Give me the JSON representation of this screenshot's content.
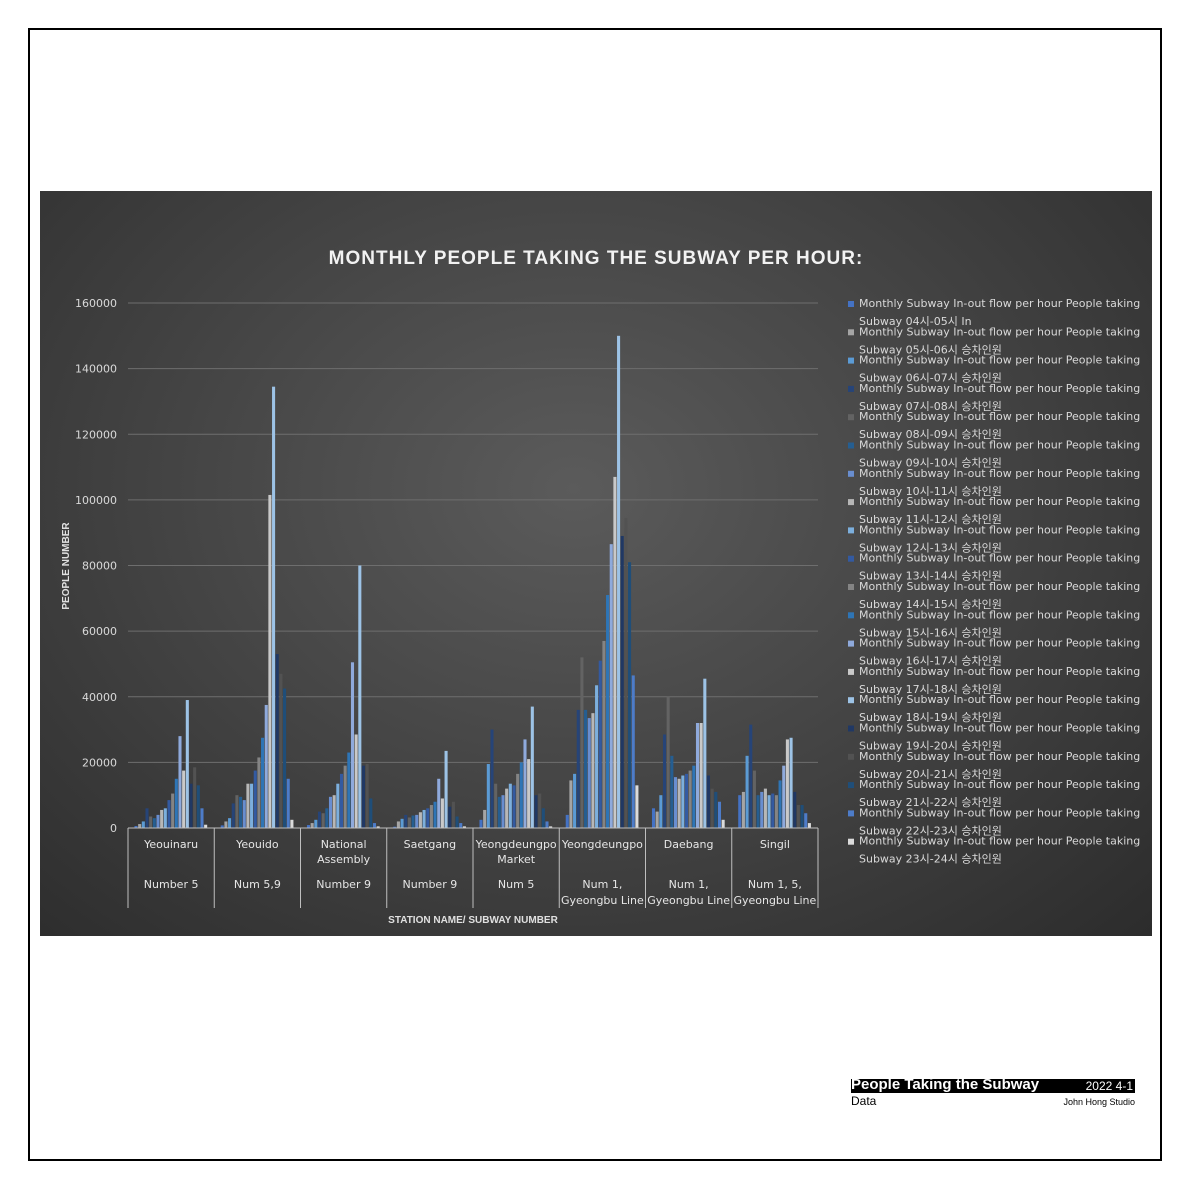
{
  "chart_data": {
    "type": "bar",
    "title": "MONTHLY PEOPLE TAKING THE SUBWAY PER HOUR:",
    "xlabel": "STATION NAME/ SUBWAY NUMBER",
    "ylabel": "PEOPLE NUMBER",
    "ylim": [
      0,
      160000
    ],
    "yticks": [
      "0",
      "20000",
      "40000",
      "60000",
      "80000",
      "100000",
      "120000",
      "140000",
      "160000"
    ],
    "grid": true,
    "legend_position": "right",
    "categories": [
      "Yeouinaru",
      "Yeouido",
      "National Assembly",
      "Saetgang",
      "Yeongdeungpo Market",
      "Yeongdeungpo",
      "Daebang",
      "Singil"
    ],
    "category_lines": {
      "names": [
        [
          "Yeouinaru"
        ],
        [
          "Yeouido"
        ],
        [
          "National",
          "Assembly"
        ],
        [
          "Saetgang"
        ],
        [
          "Yeongdeungpo",
          "Market"
        ],
        [
          "Yeongdeungpo"
        ],
        [
          "Daebang"
        ],
        [
          "Singil"
        ]
      ],
      "lines": [
        [
          "Number 5"
        ],
        [
          "Num 5,9"
        ],
        [
          "Number 9"
        ],
        [
          "Number 9"
        ],
        [
          "Num 5"
        ],
        [
          "Num 1,",
          "Gyeongbu Line"
        ],
        [
          "Num 1,",
          "Gyeongbu Line"
        ],
        [
          "Num 1, 5,",
          "Gyeongbu Line"
        ]
      ]
    },
    "subway_numbers": [
      "Number 5",
      "Num 5,9",
      "Number 9",
      "Number 9",
      "Num 5",
      "Num 1, Gyeongbu Line",
      "Num 1, Gyeongbu Line",
      "Num 1, 5, Gyeongbu Line"
    ],
    "series": [
      {
        "name": "Monthly Subway In-out flow per hour People taking Subway 04시-05시 In",
        "color": "#4472c4",
        "values": [
          600,
          800,
          900,
          400,
          2500,
          4000,
          6000,
          10000
        ]
      },
      {
        "name": "Monthly Subway In-out flow per hour People taking Subway 05시-06시 승차인원",
        "color": "#a5a5a5",
        "values": [
          1200,
          2000,
          1500,
          2000,
          5500,
          14500,
          5000,
          11000
        ]
      },
      {
        "name": "Monthly Subway In-out flow per hour People taking Subway 06시-07시 승차인원",
        "color": "#5b9bd5",
        "values": [
          2000,
          3000,
          2500,
          2800,
          19500,
          16500,
          10000,
          22000
        ]
      },
      {
        "name": "Monthly Subway In-out flow per hour People taking Subway 07시-08시 승차인원",
        "color": "#264478",
        "values": [
          6000,
          7500,
          5000,
          4000,
          30000,
          36000,
          28500,
          31500
        ]
      },
      {
        "name": "Monthly Subway In-out flow per hour People taking Subway 08시-09시 승차인원",
        "color": "#636363",
        "values": [
          3500,
          10000,
          4500,
          3200,
          13500,
          52000,
          40000,
          17500
        ]
      },
      {
        "name": "Monthly Subway In-out flow per hour People taking Subway 09시-10시 승차인원",
        "color": "#255e91",
        "values": [
          3000,
          9500,
          6000,
          3800,
          9500,
          36000,
          22000,
          10000
        ]
      },
      {
        "name": "Monthly Subway In-out flow per hour People taking Subway 10시-11시 승차인원",
        "color": "#698ed0",
        "values": [
          4000,
          8500,
          9500,
          4000,
          10000,
          33500,
          15500,
          11000
        ]
      },
      {
        "name": "Monthly Subway In-out flow per hour People taking Subway 11시-12시 승차인원",
        "color": "#b7b7b7",
        "values": [
          5500,
          13500,
          10000,
          4800,
          12000,
          35000,
          15000,
          12000
        ]
      },
      {
        "name": "Monthly Subway In-out flow per hour People taking Subway 12시-13시 승차인원",
        "color": "#7cafdd",
        "values": [
          6000,
          13500,
          13500,
          5500,
          13500,
          43500,
          16000,
          10000
        ]
      },
      {
        "name": "Monthly Subway In-out flow per hour People taking Subway 13시-14시 승차인원",
        "color": "#335aa1",
        "values": [
          8500,
          17500,
          16500,
          6000,
          13000,
          51000,
          16500,
          10500
        ]
      },
      {
        "name": "Monthly Subway In-out flow per hour People taking Subway 14시-15시 승차인원",
        "color": "#848484",
        "values": [
          10500,
          21500,
          19000,
          7000,
          16500,
          57000,
          17500,
          10000
        ]
      },
      {
        "name": "Monthly Subway In-out flow per hour People taking Subway 15시-16시 승차인원",
        "color": "#2e75b6",
        "values": [
          15000,
          27500,
          23000,
          8000,
          20000,
          71000,
          19000,
          14500
        ]
      },
      {
        "name": "Monthly Subway In-out flow per hour People taking Subway 16시-17시 승차인원",
        "color": "#8faadc",
        "values": [
          28000,
          37500,
          50500,
          15000,
          27000,
          86500,
          32000,
          19000
        ]
      },
      {
        "name": "Monthly Subway In-out flow per hour People taking Subway 17시-18시 승차인원",
        "color": "#c9c9c9",
        "values": [
          17500,
          101500,
          28500,
          9000,
          21000,
          107000,
          32000,
          27000
        ]
      },
      {
        "name": "Monthly Subway In-out flow per hour People taking Subway 18시-19시 승차인원",
        "color": "#9dc3e6",
        "values": [
          39000,
          134500,
          80000,
          23500,
          37000,
          150000,
          45500,
          27500
        ]
      },
      {
        "name": "Monthly Subway In-out flow per hour People taking Subway 19시-20시 승차인원",
        "color": "#203864",
        "values": [
          13500,
          53000,
          19000,
          6500,
          10000,
          89000,
          16000,
          11000
        ]
      },
      {
        "name": "Monthly Subway In-out flow per hour People taking Subway 20시-21시 승차인원",
        "color": "#525252",
        "values": [
          18500,
          47000,
          19500,
          8000,
          10500,
          94500,
          12000,
          7000
        ]
      },
      {
        "name": "Monthly Subway In-out flow per hour People taking Subway 21시-22시 승차인원",
        "color": "#1f4e79",
        "values": [
          13000,
          42500,
          9000,
          3500,
          6000,
          81000,
          11000,
          7000
        ]
      },
      {
        "name": "Monthly Subway In-out flow per hour People taking Subway 22시-23시 승차인원",
        "color": "#4d7cc9",
        "values": [
          6000,
          15000,
          1500,
          1500,
          2000,
          46500,
          8000,
          4500
        ]
      },
      {
        "name": "Monthly Subway In-out flow per hour People taking Subway 23시-24시 승차인원",
        "color": "#dbdbdb",
        "values": [
          1000,
          2500,
          500,
          500,
          500,
          13000,
          2500,
          1500
        ]
      }
    ]
  },
  "caption": {
    "title": "People Taking the Subway",
    "date": "2022 4-1",
    "subtitle": "Data",
    "studio": "John Hong Studio"
  }
}
